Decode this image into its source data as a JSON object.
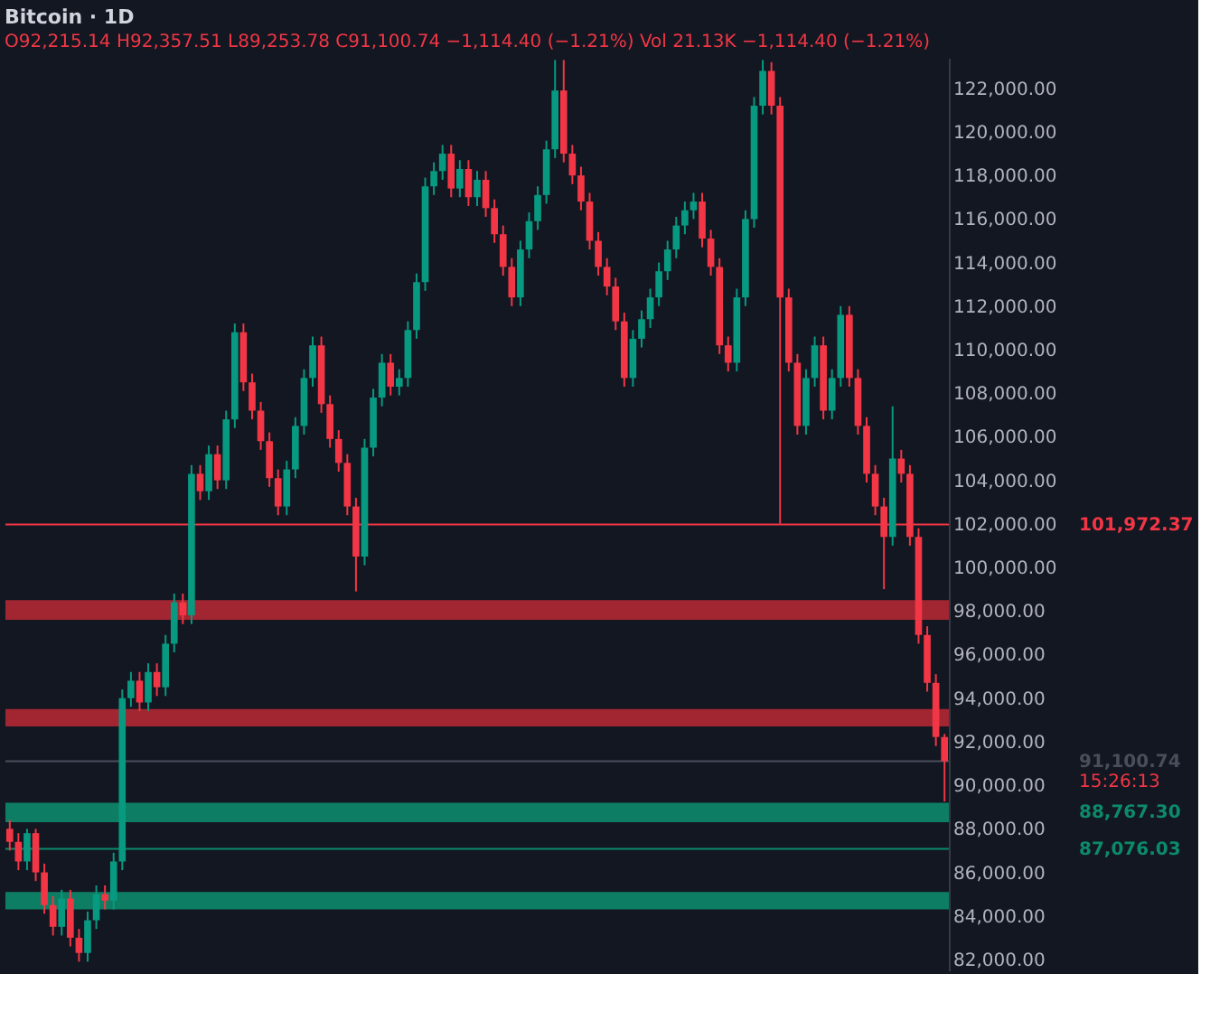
{
  "chart_data": {
    "type": "candlestick",
    "title": "Bitcoin · 1D",
    "subtitle": "O92,215.14 H92,357.51 L89,253.78 C91,100.74 −1,114.40 (−1.21%)   Vol 21.13K −1,114.40 (−1.21%)",
    "categories": [
      null,
      null,
      null,
      null,
      null,
      null,
      null,
      null,
      null,
      null,
      null,
      null,
      null,
      null,
      null,
      null,
      null,
      null,
      null,
      null,
      null,
      null,
      null,
      null,
      null,
      null,
      null,
      null,
      null,
      null,
      null,
      null,
      null,
      null,
      null,
      null,
      null,
      null,
      null,
      null,
      null,
      null,
      null,
      null,
      null,
      null,
      null,
      null,
      null,
      null,
      null,
      null,
      null,
      null,
      null,
      null,
      null,
      null,
      null,
      null,
      null,
      null,
      null,
      null,
      null,
      null,
      null,
      null,
      null,
      null,
      null,
      null,
      null,
      null,
      null,
      null,
      null,
      null,
      null,
      null,
      null,
      null,
      null,
      null,
      null,
      null,
      null,
      null,
      null,
      null,
      null,
      null,
      null,
      null,
      null,
      null,
      null,
      null,
      null,
      null,
      null,
      null,
      null,
      null,
      null,
      null,
      null,
      null,
      null
    ],
    "ohlc": [
      [
        88000,
        88400,
        87000,
        87400
      ],
      [
        87400,
        87800,
        86100,
        86500
      ],
      [
        86500,
        88000,
        86100,
        87800
      ],
      [
        87800,
        88000,
        85600,
        86000
      ],
      [
        86000,
        86400,
        84100,
        84500
      ],
      [
        84500,
        84900,
        83100,
        83500
      ],
      [
        83500,
        85200,
        83100,
        84800
      ],
      [
        84800,
        85200,
        82600,
        83000
      ],
      [
        83000,
        83400,
        81900,
        82300
      ],
      [
        82300,
        84200,
        81900,
        83800
      ],
      [
        83800,
        85400,
        83400,
        85000
      ],
      [
        85000,
        85400,
        84300,
        84700
      ],
      [
        84700,
        86900,
        84300,
        86500
      ],
      [
        86500,
        94400,
        86100,
        94000
      ],
      [
        94000,
        95200,
        93600,
        94800
      ],
      [
        94800,
        95200,
        93400,
        93800
      ],
      [
        93800,
        95600,
        93400,
        95200
      ],
      [
        95200,
        95600,
        94100,
        94500
      ],
      [
        94500,
        96900,
        94100,
        96500
      ],
      [
        96500,
        98800,
        96100,
        98400
      ],
      [
        98400,
        98800,
        97400,
        97800
      ],
      [
        97800,
        104700,
        97400,
        104300
      ],
      [
        104300,
        104700,
        103100,
        103500
      ],
      [
        103500,
        105600,
        103100,
        105200
      ],
      [
        105200,
        105600,
        103600,
        104000
      ],
      [
        104000,
        107200,
        103600,
        106800
      ],
      [
        106800,
        111200,
        106400,
        110800
      ],
      [
        110800,
        111200,
        108100,
        108500
      ],
      [
        108500,
        108900,
        106800,
        107200
      ],
      [
        107200,
        107600,
        105400,
        105800
      ],
      [
        105800,
        106200,
        103700,
        104100
      ],
      [
        104100,
        104500,
        102400,
        102800
      ],
      [
        102800,
        104900,
        102400,
        104500
      ],
      [
        104500,
        106900,
        104100,
        106500
      ],
      [
        106500,
        109100,
        106100,
        108700
      ],
      [
        108700,
        110600,
        108300,
        110200
      ],
      [
        110200,
        110600,
        107100,
        107500
      ],
      [
        107500,
        107900,
        105500,
        105900
      ],
      [
        105900,
        106300,
        104400,
        104800
      ],
      [
        104800,
        105200,
        102400,
        102800
      ],
      [
        102800,
        103200,
        98900,
        100500
      ],
      [
        100500,
        105900,
        100100,
        105500
      ],
      [
        105500,
        108200,
        105100,
        107800
      ],
      [
        107800,
        109800,
        107400,
        109400
      ],
      [
        109400,
        109800,
        107900,
        108300
      ],
      [
        108300,
        109100,
        107900,
        108700
      ],
      [
        108700,
        111300,
        108300,
        110900
      ],
      [
        110900,
        113500,
        110500,
        113100
      ],
      [
        113100,
        117900,
        112700,
        117500
      ],
      [
        117500,
        118600,
        117100,
        118200
      ],
      [
        118200,
        119400,
        117800,
        119000
      ],
      [
        119000,
        119400,
        117000,
        117400
      ],
      [
        117400,
        118700,
        117000,
        118300
      ],
      [
        118300,
        118700,
        116600,
        117000
      ],
      [
        117000,
        118200,
        116600,
        117800
      ],
      [
        117800,
        118200,
        116100,
        116500
      ],
      [
        116500,
        116900,
        114900,
        115300
      ],
      [
        115300,
        115700,
        113400,
        113800
      ],
      [
        113800,
        114200,
        112000,
        112400
      ],
      [
        112400,
        115000,
        112000,
        114600
      ],
      [
        114600,
        116300,
        114200,
        115900
      ],
      [
        115900,
        117500,
        115500,
        117100
      ],
      [
        117100,
        119600,
        116700,
        119200
      ],
      [
        119200,
        123300,
        118800,
        121900
      ],
      [
        121900,
        123300,
        118600,
        119000
      ],
      [
        119000,
        119400,
        117600,
        118000
      ],
      [
        118000,
        118400,
        116400,
        116800
      ],
      [
        116800,
        117200,
        114600,
        115000
      ],
      [
        115000,
        115400,
        113400,
        113800
      ],
      [
        113800,
        114200,
        112500,
        112900
      ],
      [
        112900,
        113300,
        110900,
        111300
      ],
      [
        111300,
        111700,
        108300,
        108700
      ],
      [
        108700,
        110900,
        108300,
        110500
      ],
      [
        110500,
        111800,
        110100,
        111400
      ],
      [
        111400,
        112800,
        111000,
        112400
      ],
      [
        112400,
        114000,
        112000,
        113600
      ],
      [
        113600,
        115000,
        113200,
        114600
      ],
      [
        114600,
        116100,
        114200,
        115700
      ],
      [
        115700,
        116800,
        115300,
        116400
      ],
      [
        116400,
        117200,
        116000,
        116800
      ],
      [
        116800,
        117200,
        114700,
        115100
      ],
      [
        115100,
        115500,
        113400,
        113800
      ],
      [
        113800,
        114200,
        109800,
        110200
      ],
      [
        110200,
        110600,
        109000,
        109400
      ],
      [
        109400,
        112800,
        109000,
        112400
      ],
      [
        112400,
        116400,
        112000,
        116000
      ],
      [
        116000,
        121600,
        115600,
        121200
      ],
      [
        121200,
        123300,
        120800,
        122800
      ],
      [
        122800,
        123200,
        120800,
        121200
      ],
      [
        121200,
        121600,
        102000,
        112400
      ],
      [
        112400,
        112800,
        109000,
        109400
      ],
      [
        109400,
        109800,
        106100,
        106500
      ],
      [
        106500,
        109100,
        106100,
        108700
      ],
      [
        108700,
        110600,
        108300,
        110200
      ],
      [
        110200,
        110600,
        106800,
        107200
      ],
      [
        107200,
        109100,
        106800,
        108700
      ],
      [
        108700,
        112000,
        108300,
        111600
      ],
      [
        111600,
        112000,
        108300,
        108700
      ],
      [
        108700,
        109100,
        106100,
        106500
      ],
      [
        106500,
        106900,
        103900,
        104300
      ],
      [
        104300,
        104700,
        102400,
        102800
      ],
      [
        102800,
        103200,
        99000,
        101400
      ],
      [
        101400,
        107400,
        101000,
        105000
      ],
      [
        105000,
        105400,
        103900,
        104300
      ],
      [
        104300,
        104700,
        101000,
        101400
      ],
      [
        101400,
        101800,
        96500,
        96900
      ],
      [
        96900,
        97300,
        94300,
        94700
      ],
      [
        94700,
        95100,
        91800,
        92215.14
      ],
      [
        92215.14,
        92357.51,
        89253.78,
        91100.74
      ]
    ],
    "colors": [
      "#f23645",
      "#f23645",
      "#089981",
      "#f23645",
      "#f23645",
      "#f23645",
      "#089981",
      "#f23645",
      "#f23645",
      "#089981",
      "#089981",
      "#f23645",
      "#089981",
      "#089981",
      "#089981",
      "#f23645",
      "#089981",
      "#f23645",
      "#089981",
      "#089981",
      "#f23645",
      "#089981",
      "#f23645",
      "#089981",
      "#f23645",
      "#089981",
      "#089981",
      "#f23645",
      "#f23645",
      "#f23645",
      "#f23645",
      "#f23645",
      "#089981",
      "#089981",
      "#089981",
      "#089981",
      "#f23645",
      "#f23645",
      "#f23645",
      "#f23645",
      "#f23645",
      "#089981",
      "#089981",
      "#089981",
      "#f23645",
      "#089981",
      "#089981",
      "#089981",
      "#089981",
      "#089981",
      "#089981",
      "#f23645",
      "#089981",
      "#f23645",
      "#089981",
      "#f23645",
      "#f23645",
      "#f23645",
      "#f23645",
      "#089981",
      "#089981",
      "#089981",
      "#089981",
      "#089981",
      "#f23645",
      "#f23645",
      "#f23645",
      "#f23645",
      "#f23645",
      "#f23645",
      "#f23645",
      "#f23645",
      "#089981",
      "#089981",
      "#089981",
      "#089981",
      "#089981",
      "#089981",
      "#089981",
      "#089981",
      "#f23645",
      "#f23645",
      "#f23645",
      "#f23645",
      "#089981",
      "#089981",
      "#089981",
      "#089981",
      "#f23645",
      "#f23645",
      "#f23645",
      "#f23645",
      "#089981",
      "#089981",
      "#f23645",
      "#089981",
      "#089981",
      "#f23645",
      "#f23645",
      "#f23645",
      "#f23645",
      "#f23645",
      "#089981",
      "#f23645",
      "#f23645",
      "#f23645",
      "#f23645",
      "#f23645",
      "#f23645"
    ],
    "ylim": [
      81500,
      123400
    ],
    "yticks": [
      {
        "value": 82000,
        "label": "82,000.00"
      },
      {
        "value": 84000,
        "label": "84,000.00"
      },
      {
        "value": 86000,
        "label": "86,000.00"
      },
      {
        "value": 88000,
        "label": "88,000.00"
      },
      {
        "value": 90000,
        "label": "90,000.00"
      },
      {
        "value": 92000,
        "label": "92,000.00"
      },
      {
        "value": 94000,
        "label": "94,000.00"
      },
      {
        "value": 96000,
        "label": "96,000.00"
      },
      {
        "value": 98000,
        "label": "98,000.00"
      },
      {
        "value": 100000,
        "label": "100,000.00"
      },
      {
        "value": 102000,
        "label": "102,000.00"
      },
      {
        "value": 104000,
        "label": "104,000.00"
      },
      {
        "value": 106000,
        "label": "106,000.00"
      },
      {
        "value": 108000,
        "label": "108,000.00"
      },
      {
        "value": 110000,
        "label": "110,000.00"
      },
      {
        "value": 112000,
        "label": "112,000.00"
      },
      {
        "value": 114000,
        "label": "114,000.00"
      },
      {
        "value": 116000,
        "label": "116,000.00"
      },
      {
        "value": 118000,
        "label": "118,000.00"
      },
      {
        "value": 120000,
        "label": "120,000.00"
      },
      {
        "value": 122000,
        "label": "122,000.00"
      }
    ],
    "bands": [
      {
        "axis": "y",
        "from": 97600,
        "to": 98500,
        "color": "#b22833"
      },
      {
        "axis": "y",
        "from": 92700,
        "to": 93500,
        "color": "#b22833"
      },
      {
        "axis": "y",
        "from": 88300,
        "to": 89200,
        "color": "#0d8a6a",
        "label": "88,767.30"
      },
      {
        "axis": "y",
        "from": 84300,
        "to": 85100,
        "color": "#0d8a6a"
      }
    ],
    "ref_lines": [
      {
        "axis": "y",
        "value": 101972.37,
        "label": "101,972.37",
        "color": "#f23645"
      },
      {
        "axis": "y",
        "value": 87076.03,
        "label": "87,076.03",
        "color": "#0d8a6a"
      },
      {
        "axis": "y",
        "value": 91100.74,
        "label": "91,100.74",
        "color": "#4a4e5a"
      }
    ],
    "annotations": [
      "15:26:13"
    ],
    "grid": false,
    "tick_labels": "y"
  }
}
